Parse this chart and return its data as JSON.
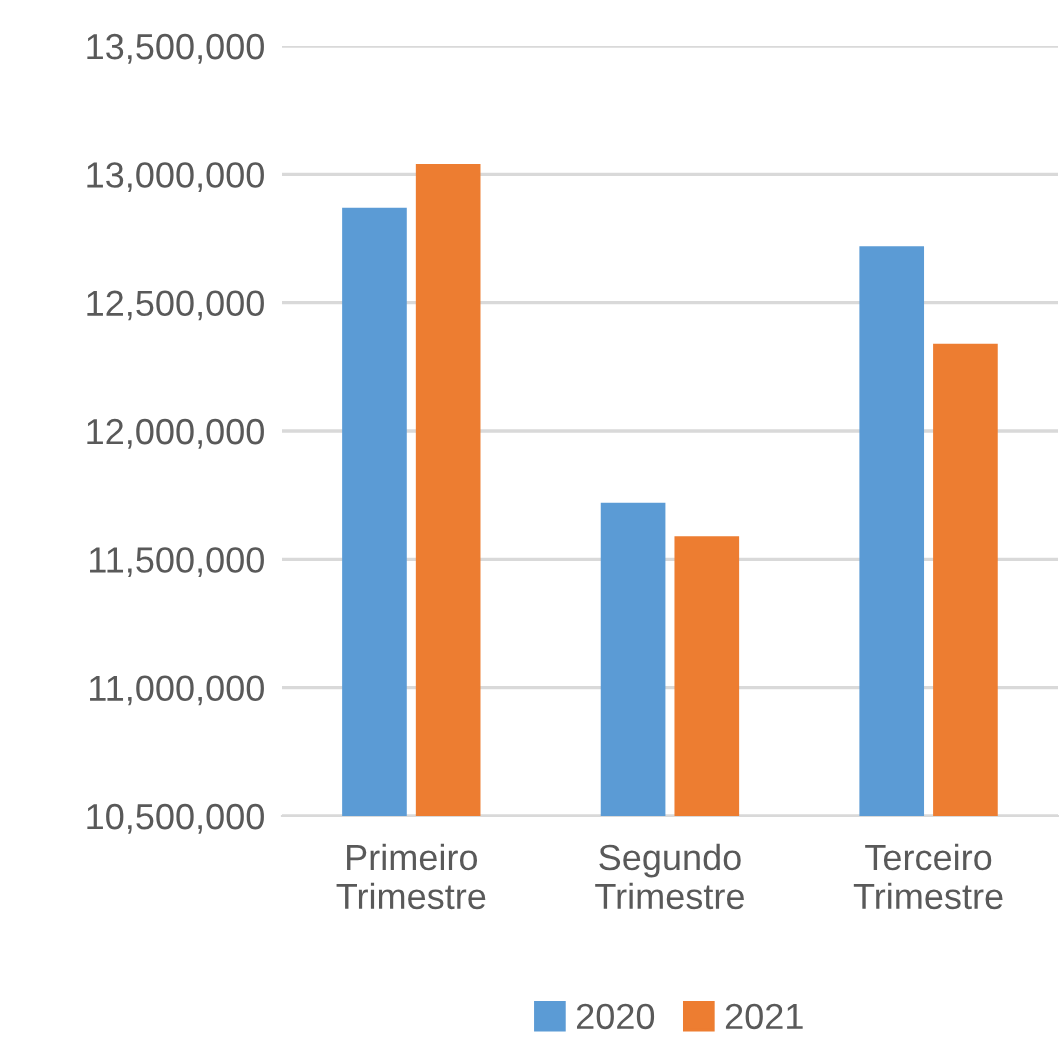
{
  "chart_data": {
    "type": "bar",
    "categories": [
      "Primeiro\nTrimestre",
      "Segundo\nTrimestre",
      "Terceiro\nTrimestre"
    ],
    "series": [
      {
        "name": "2020",
        "color": "#5b9bd5",
        "values": [
          12870000,
          11720000,
          12720000
        ]
      },
      {
        "name": "2021",
        "color": "#ed7d31",
        "values": [
          13040000,
          11590000,
          12340000
        ]
      }
    ],
    "ylim": [
      10500000,
      13500000
    ],
    "yticks": [
      {
        "value": 10500000,
        "label": "10,500,000"
      },
      {
        "value": 11000000,
        "label": "11,000,000"
      },
      {
        "value": 11500000,
        "label": "11,500,000"
      },
      {
        "value": 12000000,
        "label": "12,000,000"
      },
      {
        "value": 12500000,
        "label": "12,500,000"
      },
      {
        "value": 13000000,
        "label": "13,000,000"
      },
      {
        "value": 13500000,
        "label": "13,500,000"
      }
    ],
    "grid": "y",
    "legend": "bottom"
  }
}
